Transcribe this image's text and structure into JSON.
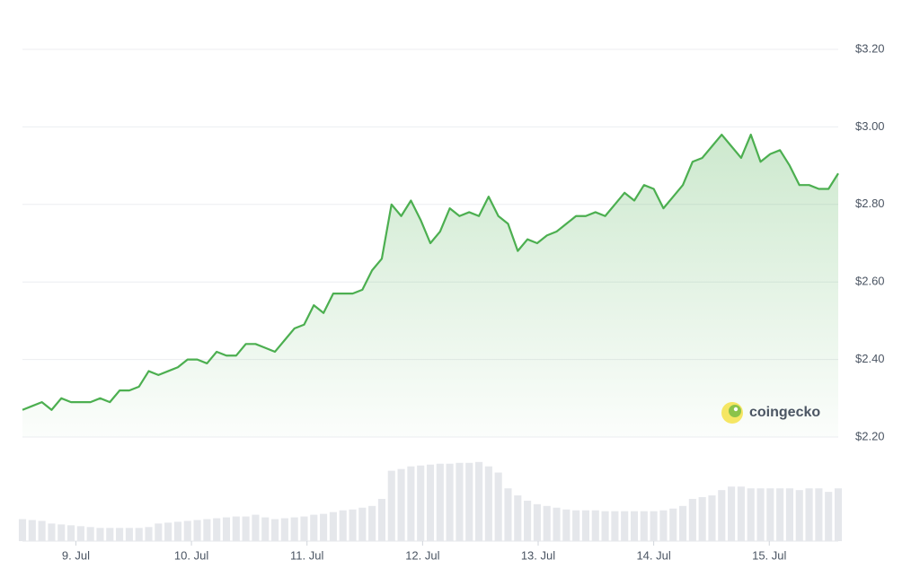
{
  "chart_data": {
    "type": "line",
    "brand": "coingecko",
    "xlim": [
      0,
      84
    ],
    "xticks": [
      {
        "value": 5.5,
        "label": "9. Jul"
      },
      {
        "value": 17.4,
        "label": "10. Jul"
      },
      {
        "value": 29.3,
        "label": "11. Jul"
      },
      {
        "value": 41.2,
        "label": "12. Jul"
      },
      {
        "value": 53.1,
        "label": "13. Jul"
      },
      {
        "value": 65.0,
        "label": "14. Jul"
      },
      {
        "value": 76.9,
        "label": "15. Jul"
      }
    ],
    "ylim": [
      2.2,
      3.2
    ],
    "yticks": [
      {
        "value": 2.2,
        "label": "$2.20"
      },
      {
        "value": 2.4,
        "label": "$2.40"
      },
      {
        "value": 2.6,
        "label": "$2.60"
      },
      {
        "value": 2.8,
        "label": "$2.80"
      },
      {
        "value": 3.0,
        "label": "$3.00"
      },
      {
        "value": 3.2,
        "label": "$3.20"
      }
    ],
    "y2lim": [
      0,
      100
    ],
    "grid": true,
    "series": [
      {
        "color": "#4caf50",
        "values": [
          2.27,
          2.28,
          2.29,
          2.27,
          2.3,
          2.29,
          2.29,
          2.29,
          2.3,
          2.29,
          2.32,
          2.32,
          2.33,
          2.37,
          2.36,
          2.37,
          2.38,
          2.4,
          2.4,
          2.39,
          2.42,
          2.41,
          2.41,
          2.44,
          2.44,
          2.43,
          2.42,
          2.45,
          2.48,
          2.49,
          2.54,
          2.52,
          2.57,
          2.57,
          2.57,
          2.58,
          2.63,
          2.66,
          2.8,
          2.77,
          2.81,
          2.76,
          2.7,
          2.73,
          2.79,
          2.77,
          2.78,
          2.77,
          2.82,
          2.77,
          2.75,
          2.68,
          2.71,
          2.7,
          2.72,
          2.73,
          2.75,
          2.77,
          2.77,
          2.78,
          2.77,
          2.8,
          2.83,
          2.81,
          2.85,
          2.84,
          2.79,
          2.82,
          2.85,
          2.91,
          2.92,
          2.95,
          2.98,
          2.95,
          2.92,
          2.98,
          2.91,
          2.93,
          2.94,
          2.9,
          2.85,
          2.85,
          2.84,
          2.84,
          2.88
        ]
      },
      {
        "color": "#e5e7eb",
        "axis": "y2",
        "values": [
          25,
          24,
          23,
          20,
          19,
          18,
          17,
          16,
          15,
          15,
          15,
          15,
          15,
          16,
          20,
          21,
          22,
          23,
          24,
          25,
          26,
          27,
          28,
          28,
          30,
          27,
          25,
          26,
          27,
          28,
          30,
          31,
          33,
          35,
          36,
          38,
          40,
          48,
          80,
          82,
          85,
          86,
          87,
          88,
          88,
          89,
          89,
          90,
          85,
          78,
          60,
          52,
          46,
          42,
          40,
          38,
          36,
          35,
          35,
          35,
          34,
          34,
          34,
          34,
          34,
          34,
          35,
          37,
          40,
          48,
          50,
          52,
          58,
          62,
          62,
          60,
          60,
          60,
          60,
          60,
          58,
          60,
          60,
          56,
          60
        ]
      }
    ]
  }
}
